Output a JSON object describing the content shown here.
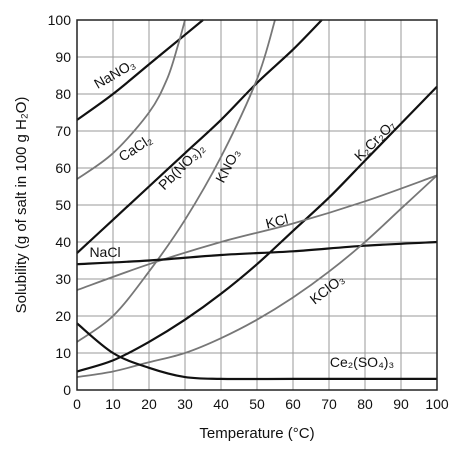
{
  "chart_data": {
    "type": "line",
    "title": "",
    "xlabel": "Temperature (°C)",
    "ylabel": "Solubility (g of salt in 100 g H₂O)",
    "xlim": [
      0,
      100
    ],
    "ylim": [
      0,
      100
    ],
    "x_ticks": [
      "0",
      "10",
      "20",
      "30",
      "40",
      "50",
      "60",
      "70",
      "80",
      "90",
      "100"
    ],
    "y_ticks": [
      "0",
      "10",
      "20",
      "30",
      "40",
      "50",
      "60",
      "70",
      "80",
      "90",
      "100"
    ],
    "grid": true,
    "series": [
      {
        "name": "NaNO₃",
        "style": "dark",
        "points": [
          [
            0,
            73
          ],
          [
            10,
            80
          ],
          [
            20,
            88
          ],
          [
            30,
            96
          ],
          [
            35,
            100
          ]
        ]
      },
      {
        "name": "CaCl₂",
        "style": "gray",
        "points": [
          [
            0,
            57
          ],
          [
            10,
            64
          ],
          [
            20,
            75
          ],
          [
            25,
            84
          ],
          [
            28,
            93
          ],
          [
            30,
            100
          ]
        ]
      },
      {
        "name": "Pb(NO₃)₂",
        "style": "dark",
        "points": [
          [
            0,
            37
          ],
          [
            10,
            46
          ],
          [
            20,
            55
          ],
          [
            30,
            64
          ],
          [
            40,
            73
          ],
          [
            50,
            83
          ],
          [
            60,
            92
          ],
          [
            68,
            100
          ]
        ]
      },
      {
        "name": "KNO₃",
        "style": "gray",
        "points": [
          [
            0,
            13
          ],
          [
            10,
            20
          ],
          [
            20,
            32
          ],
          [
            30,
            46
          ],
          [
            40,
            63
          ],
          [
            50,
            84
          ],
          [
            55,
            100
          ]
        ]
      },
      {
        "name": "K₂Cr₂O₇",
        "style": "dark",
        "points": [
          [
            0,
            5
          ],
          [
            10,
            8
          ],
          [
            20,
            13
          ],
          [
            30,
            19
          ],
          [
            40,
            26
          ],
          [
            50,
            34
          ],
          [
            60,
            43
          ],
          [
            70,
            52
          ],
          [
            80,
            62
          ],
          [
            90,
            72
          ],
          [
            100,
            82
          ]
        ]
      },
      {
        "name": "KCl",
        "style": "gray",
        "points": [
          [
            0,
            27
          ],
          [
            20,
            34
          ],
          [
            40,
            40
          ],
          [
            60,
            45
          ],
          [
            80,
            51
          ],
          [
            100,
            58
          ]
        ]
      },
      {
        "name": "NaCl",
        "style": "dark",
        "points": [
          [
            0,
            34
          ],
          [
            20,
            35
          ],
          [
            40,
            36.5
          ],
          [
            60,
            37.5
          ],
          [
            80,
            39
          ],
          [
            100,
            40
          ]
        ]
      },
      {
        "name": "KClO₃",
        "style": "gray",
        "points": [
          [
            0,
            3.5
          ],
          [
            10,
            5
          ],
          [
            20,
            7.5
          ],
          [
            30,
            10
          ],
          [
            40,
            14
          ],
          [
            50,
            19
          ],
          [
            60,
            25
          ],
          [
            70,
            32
          ],
          [
            80,
            40
          ],
          [
            90,
            49
          ],
          [
            100,
            58
          ]
        ]
      },
      {
        "name": "Ce₂(SO₄)₃",
        "style": "dark",
        "points": [
          [
            0,
            18
          ],
          [
            10,
            10
          ],
          [
            20,
            6
          ],
          [
            30,
            3.5
          ],
          [
            40,
            3
          ],
          [
            60,
            3
          ],
          [
            80,
            3
          ],
          [
            100,
            3
          ]
        ]
      }
    ],
    "annotations": [
      {
        "series": "NaNO₃",
        "text": "NaNO₃"
      },
      {
        "series": "CaCl₂",
        "text": "CaCl₂"
      },
      {
        "series": "Pb(NO₃)₂",
        "text": "Pb(NO₃)₂"
      },
      {
        "series": "KNO₃",
        "text": "KNO₃"
      },
      {
        "series": "K₂Cr₂O₇",
        "text": "K₂Cr₂O₇"
      },
      {
        "series": "KCl",
        "text": "KCl"
      },
      {
        "series": "NaCl",
        "text": "NaCl"
      },
      {
        "series": "KClO₃",
        "text": "KClO₃"
      },
      {
        "series": "Ce₂(SO₄)₃",
        "text": "Ce₂(SO₄)₃"
      }
    ]
  }
}
